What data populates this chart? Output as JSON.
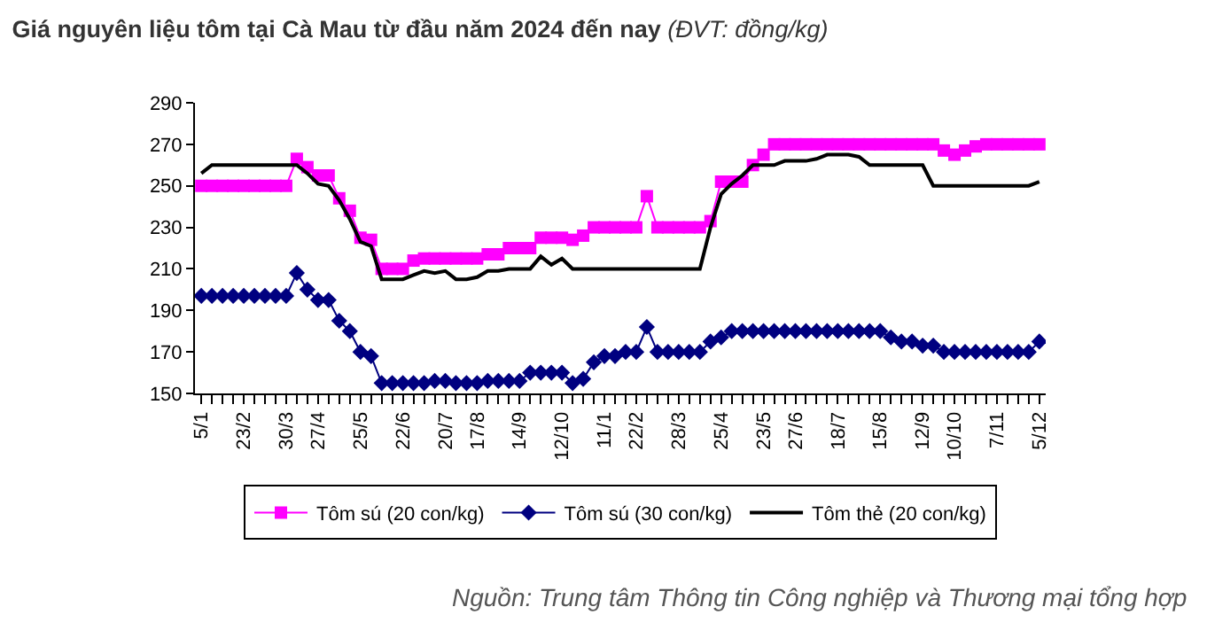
{
  "chart_data": {
    "type": "line",
    "title": "Giá nguyên liệu tôm tại Cà Mau từ đầu năm 2024 đến nay",
    "subtitle": "(ĐVT: đồng/kg)",
    "categories": [
      "5/1",
      null,
      null,
      null,
      "23/2",
      null,
      null,
      null,
      "30/3",
      null,
      null,
      "27/4",
      null,
      null,
      null,
      "25/5",
      null,
      null,
      null,
      "22/6",
      null,
      null,
      null,
      "20/7",
      null,
      null,
      "17/8",
      null,
      null,
      null,
      "14/9",
      null,
      null,
      null,
      "12/10",
      null,
      null,
      null,
      "11/1",
      null,
      null,
      "22/2",
      null,
      null,
      null,
      "28/3",
      null,
      null,
      null,
      "25/4",
      null,
      null,
      null,
      "23/5",
      null,
      null,
      "27/6",
      null,
      null,
      null,
      "18/7",
      null,
      null,
      null,
      "15/8",
      null,
      null,
      null,
      "12/9",
      null,
      null,
      "10/10",
      null,
      null,
      null,
      "7/11",
      null,
      null,
      null,
      "5/12"
    ],
    "series": [
      {
        "name": "Tôm sú (20 con/kg)",
        "color": "#ff00ff",
        "marker": "square",
        "values": [
          250,
          250,
          250,
          250,
          250,
          250,
          250,
          250,
          250,
          263,
          259,
          255,
          255,
          244,
          238,
          225,
          224,
          210,
          210,
          210,
          214,
          215,
          215,
          215,
          215,
          215,
          215,
          217,
          217,
          220,
          220,
          220,
          225,
          225,
          225,
          224,
          226,
          230,
          230,
          230,
          230,
          230,
          245,
          230,
          230,
          230,
          230,
          230,
          233,
          252,
          252,
          252,
          260,
          265,
          270,
          270,
          270,
          270,
          270,
          270,
          270,
          270,
          270,
          270,
          270,
          270,
          270,
          270,
          270,
          270,
          267,
          265,
          267,
          269,
          270,
          270,
          270,
          270,
          270,
          270
        ]
      },
      {
        "name": "Tôm sú (30 con/kg)",
        "color": "#000080",
        "marker": "diamond",
        "values": [
          197,
          197,
          197,
          197,
          197,
          197,
          197,
          197,
          197,
          208,
          200,
          195,
          195,
          185,
          180,
          170,
          168,
          155,
          155,
          155,
          155,
          155,
          156,
          156,
          155,
          155,
          155,
          156,
          156,
          156,
          156,
          160,
          160,
          160,
          160,
          155,
          157,
          165,
          168,
          168,
          170,
          170,
          182,
          170,
          170,
          170,
          170,
          170,
          175,
          177,
          180,
          180,
          180,
          180,
          180,
          180,
          180,
          180,
          180,
          180,
          180,
          180,
          180,
          180,
          180,
          177,
          175,
          175,
          173,
          173,
          170,
          170,
          170,
          170,
          170,
          170,
          170,
          170,
          170,
          175
        ]
      },
      {
        "name": "Tôm thẻ (20 con/kg)",
        "color": "#000000",
        "marker": "none",
        "values": [
          256,
          260,
          260,
          260,
          260,
          260,
          260,
          260,
          260,
          260,
          256,
          251,
          250,
          243,
          234,
          223,
          221,
          205,
          205,
          205,
          207,
          209,
          208,
          209,
          205,
          205,
          206,
          209,
          209,
          210,
          210,
          210,
          216,
          212,
          215,
          210,
          210,
          210,
          210,
          210,
          210,
          210,
          210,
          210,
          210,
          210,
          210,
          210,
          230,
          246,
          251,
          255,
          260,
          260,
          260,
          262,
          262,
          262,
          263,
          265,
          265,
          265,
          264,
          260,
          260,
          260,
          260,
          260,
          260,
          250,
          250,
          250,
          250,
          250,
          250,
          250,
          250,
          250,
          250,
          252
        ]
      }
    ],
    "ylim": [
      150,
      290
    ],
    "yticks": [
      150,
      170,
      190,
      210,
      230,
      250,
      270,
      290
    ],
    "legend": "bottom",
    "annotations": [
      "Nguồn: Trung tâm Thông tin Công nghiệp và Thương mại tổng hợp"
    ]
  }
}
